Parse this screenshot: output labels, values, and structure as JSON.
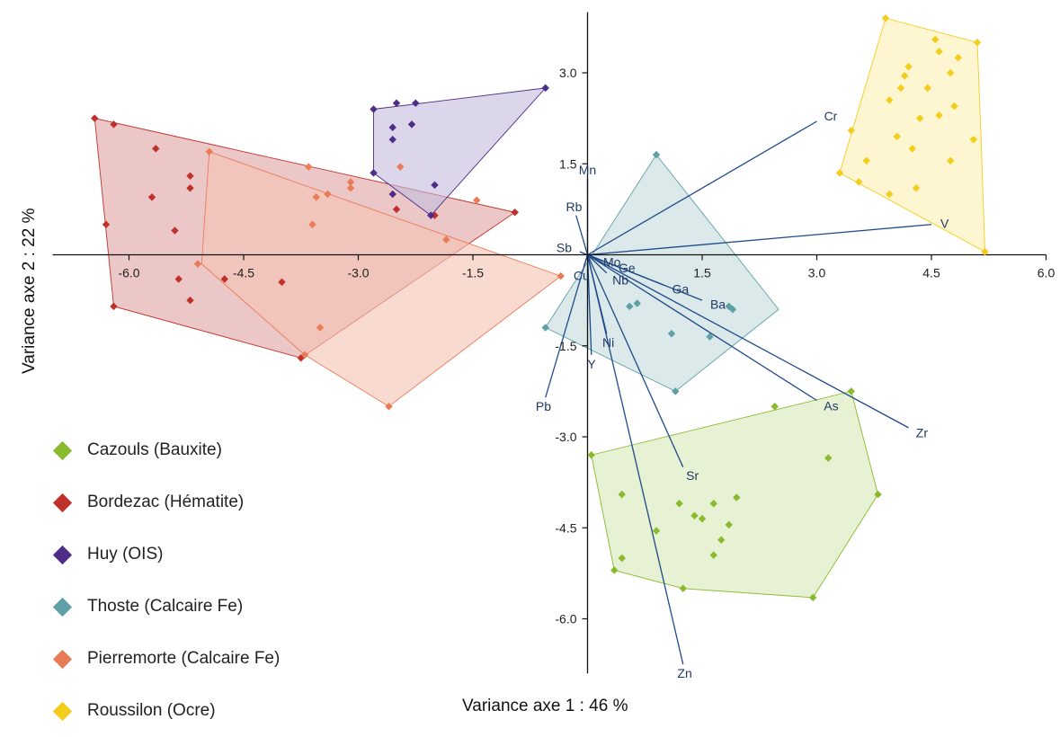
{
  "chart_data": {
    "type": "scatter",
    "xlabel": "Variance axe 1 : 46 %",
    "ylabel": "Variance axe 2 : 22 %",
    "xlim": [
      -7.0,
      6.0
    ],
    "ylim": [
      -6.9,
      4.0
    ],
    "x_ticks": [
      -6.0,
      -4.5,
      -3.0,
      -1.5,
      1.5,
      3.0,
      4.5,
      6.0
    ],
    "y_ticks": [
      3.0,
      1.5,
      -1.5,
      -3.0,
      -4.5,
      -6.0
    ],
    "x_tick_labels": [
      "-6.0",
      "-4.5",
      "-3.0",
      "-1.5",
      "1.5",
      "3.0",
      "4.5",
      "6.0"
    ],
    "y_tick_labels": [
      "3.0",
      "1.5",
      "-1.5",
      "-3.0",
      "-4.5",
      "-6.0"
    ],
    "series": [
      {
        "name": "Cazouls (Bauxite)",
        "color": "#8ab92d",
        "fill": "#d9e8b8",
        "hull": [
          [
            0.05,
            -3.3
          ],
          [
            3.45,
            -2.25
          ],
          [
            3.8,
            -3.95
          ],
          [
            2.95,
            -5.65
          ],
          [
            1.25,
            -5.5
          ],
          [
            0.35,
            -5.2
          ]
        ],
        "points": [
          [
            0.05,
            -3.3
          ],
          [
            3.45,
            -2.25
          ],
          [
            3.8,
            -3.95
          ],
          [
            2.95,
            -5.65
          ],
          [
            1.25,
            -5.5
          ],
          [
            0.35,
            -5.2
          ],
          [
            2.45,
            -2.5
          ],
          [
            3.15,
            -3.35
          ],
          [
            0.45,
            -3.95
          ],
          [
            0.45,
            -5.0
          ],
          [
            0.9,
            -4.55
          ],
          [
            1.2,
            -4.1
          ],
          [
            1.4,
            -4.3
          ],
          [
            1.5,
            -4.35
          ],
          [
            1.65,
            -4.1
          ],
          [
            1.85,
            -4.45
          ],
          [
            1.75,
            -4.7
          ],
          [
            1.65,
            -4.95
          ],
          [
            1.95,
            -4.0
          ]
        ]
      },
      {
        "name": "Bordezac (Hématite)",
        "color": "#c0312b",
        "fill": "#dea6a4",
        "hull": [
          [
            -6.45,
            2.25
          ],
          [
            -0.95,
            0.7
          ],
          [
            -3.75,
            -1.7
          ],
          [
            -6.2,
            -0.85
          ]
        ],
        "points": [
          [
            -6.45,
            2.25
          ],
          [
            -6.2,
            2.15
          ],
          [
            -5.65,
            1.75
          ],
          [
            -5.2,
            1.3
          ],
          [
            -5.2,
            1.1
          ],
          [
            -5.7,
            0.95
          ],
          [
            -6.3,
            0.5
          ],
          [
            -5.4,
            0.4
          ],
          [
            -5.35,
            -0.4
          ],
          [
            -5.2,
            -0.75
          ],
          [
            -4.75,
            -0.4
          ],
          [
            -4.0,
            -0.45
          ],
          [
            -6.2,
            -0.85
          ],
          [
            -3.75,
            -1.7
          ],
          [
            -2.5,
            0.75
          ],
          [
            -2.0,
            0.65
          ],
          [
            -0.95,
            0.7
          ]
        ]
      },
      {
        "name": "Huy (OIS)",
        "color": "#4e2d86",
        "fill": "#c5bddb",
        "hull": [
          [
            -2.8,
            2.4
          ],
          [
            -0.55,
            2.75
          ],
          [
            -2.05,
            0.65
          ],
          [
            -2.8,
            1.35
          ]
        ],
        "points": [
          [
            -2.8,
            2.4
          ],
          [
            -2.5,
            2.5
          ],
          [
            -2.25,
            2.5
          ],
          [
            -2.55,
            2.1
          ],
          [
            -2.55,
            1.9
          ],
          [
            -2.3,
            2.15
          ],
          [
            -0.55,
            2.75
          ],
          [
            -2.8,
            1.35
          ],
          [
            -2.55,
            1.0
          ],
          [
            -2.0,
            1.15
          ],
          [
            -2.05,
            0.65
          ]
        ]
      },
      {
        "name": "Thoste (Calcaire Fe)",
        "color": "#5ea0a5",
        "fill": "#c5dcdd",
        "hull": [
          [
            0.9,
            1.65
          ],
          [
            2.5,
            -0.9
          ],
          [
            1.15,
            -2.25
          ],
          [
            -0.55,
            -1.2
          ]
        ],
        "points": [
          [
            0.9,
            1.65
          ],
          [
            1.85,
            -0.85
          ],
          [
            1.9,
            -0.9
          ],
          [
            0.55,
            -0.85
          ],
          [
            0.65,
            -0.8
          ],
          [
            1.1,
            -1.3
          ],
          [
            1.6,
            -1.35
          ],
          [
            -0.55,
            -1.2
          ],
          [
            1.15,
            -2.25
          ]
        ]
      },
      {
        "name": "Pierremorte (Calcaire Fe)",
        "color": "#ea7b57",
        "fill": "#f6c4b3",
        "hull": [
          [
            -4.95,
            1.7
          ],
          [
            -0.35,
            -0.35
          ],
          [
            -2.6,
            -2.5
          ],
          [
            -3.7,
            -1.65
          ],
          [
            -5.05,
            -0.15
          ]
        ],
        "points": [
          [
            -4.95,
            1.7
          ],
          [
            -3.65,
            1.45
          ],
          [
            -2.45,
            1.45
          ],
          [
            -3.1,
            1.2
          ],
          [
            -3.1,
            1.1
          ],
          [
            -3.4,
            1.0
          ],
          [
            -3.55,
            0.95
          ],
          [
            -3.6,
            0.5
          ],
          [
            -1.45,
            0.9
          ],
          [
            -1.85,
            0.25
          ],
          [
            -0.35,
            -0.35
          ],
          [
            -5.1,
            -0.15
          ],
          [
            -3.5,
            -1.2
          ],
          [
            -3.7,
            -1.65
          ],
          [
            -2.6,
            -2.5
          ]
        ]
      },
      {
        "name": "Roussilon (Ocre)",
        "color": "#f3cc1c",
        "fill": "#fbf0b3",
        "hull": [
          [
            3.9,
            3.9
          ],
          [
            5.1,
            3.5
          ],
          [
            5.15,
            1.9
          ],
          [
            5.2,
            0.05
          ],
          [
            3.3,
            1.35
          ]
        ],
        "points": [
          [
            3.9,
            3.9
          ],
          [
            4.55,
            3.55
          ],
          [
            5.1,
            3.5
          ],
          [
            4.6,
            3.35
          ],
          [
            4.85,
            3.25
          ],
          [
            4.2,
            3.1
          ],
          [
            4.15,
            2.95
          ],
          [
            4.75,
            3.0
          ],
          [
            4.1,
            2.75
          ],
          [
            4.45,
            2.75
          ],
          [
            3.95,
            2.55
          ],
          [
            4.8,
            2.45
          ],
          [
            4.35,
            2.25
          ],
          [
            4.6,
            2.3
          ],
          [
            3.45,
            2.05
          ],
          [
            4.05,
            1.95
          ],
          [
            5.05,
            1.9
          ],
          [
            4.25,
            1.75
          ],
          [
            3.65,
            1.55
          ],
          [
            4.75,
            1.55
          ],
          [
            3.3,
            1.35
          ],
          [
            3.55,
            1.2
          ],
          [
            4.3,
            1.1
          ],
          [
            3.95,
            1.0
          ],
          [
            5.2,
            0.05
          ]
        ]
      }
    ],
    "vectors": [
      {
        "label": "Cr",
        "x": 3.0,
        "y": 2.2
      },
      {
        "label": "V",
        "x": 4.5,
        "y": 0.5
      },
      {
        "label": "Mn",
        "x": 0.0,
        "y": 1.25
      },
      {
        "label": "Rb",
        "x": -0.15,
        "y": 0.65
      },
      {
        "label": "Sb",
        "x": -0.1,
        "y": 0.05
      },
      {
        "label": "Mo",
        "x": 0.1,
        "y": -0.05
      },
      {
        "label": "Ge",
        "x": 0.3,
        "y": -0.15
      },
      {
        "label": "Cu",
        "x": -0.05,
        "y": -0.2
      },
      {
        "label": "Nb",
        "x": 0.25,
        "y": -0.3
      },
      {
        "label": "Ga",
        "x": 1.0,
        "y": -0.5
      },
      {
        "label": "Ba",
        "x": 1.5,
        "y": -0.75
      },
      {
        "label": "Ni",
        "x": 0.25,
        "y": -1.3
      },
      {
        "label": "Y",
        "x": 0.05,
        "y": -1.65
      },
      {
        "label": "Pb",
        "x": -0.55,
        "y": -2.35
      },
      {
        "label": "As",
        "x": 3.0,
        "y": -2.4
      },
      {
        "label": "Zr",
        "x": 4.2,
        "y": -2.85
      },
      {
        "label": "Sr",
        "x": 1.25,
        "y": -3.5
      },
      {
        "label": "Zn",
        "x": 1.25,
        "y": -6.75
      }
    ]
  }
}
